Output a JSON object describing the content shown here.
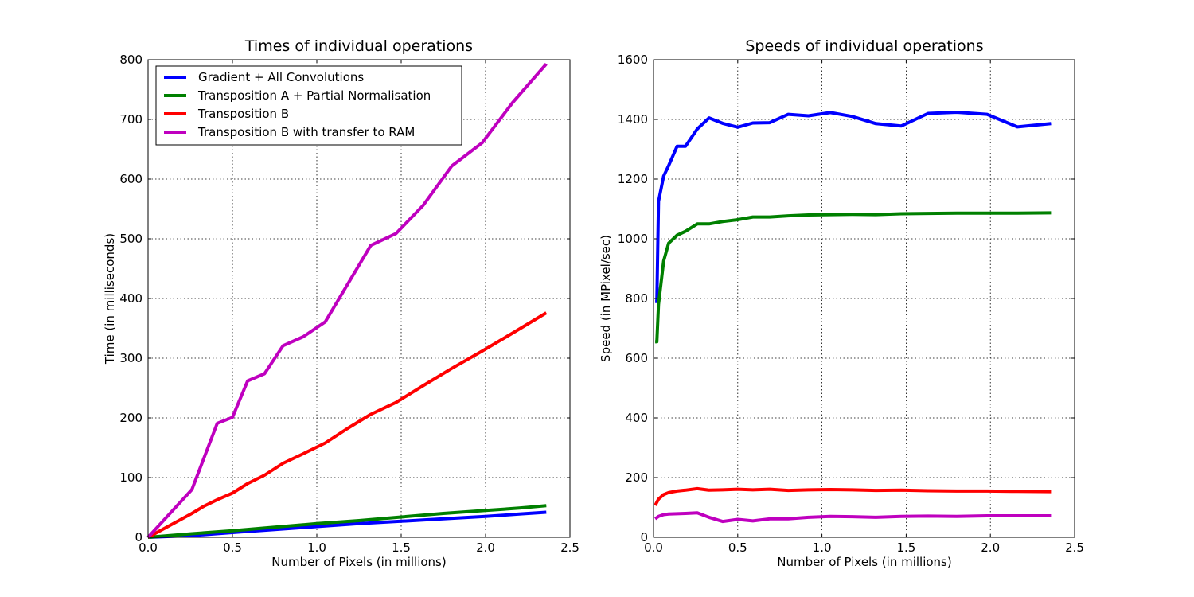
{
  "chart_data": [
    {
      "type": "line",
      "title": "Times of individual operations",
      "xlabel": "Number of Pixels (in millions)",
      "ylabel": "Time (in milliseconds)",
      "xlim": [
        0,
        2.5
      ],
      "ylim": [
        0,
        800
      ],
      "xticks": [
        "0.0",
        "0.5",
        "1.0",
        "1.5",
        "2.0",
        "2.5"
      ],
      "yticks": [
        "0",
        "100",
        "200",
        "300",
        "400",
        "500",
        "600",
        "700",
        "800"
      ],
      "grid": true,
      "legend": "upper-left",
      "series": [
        {
          "name": "Gradient + All Convolutions",
          "color": "#0000ff",
          "x": [
            0.0,
            0.26,
            0.5,
            0.75,
            1.0,
            1.25,
            1.5,
            1.75,
            2.0,
            2.2,
            2.36
          ],
          "y": [
            0,
            3,
            8,
            13,
            18,
            23,
            27,
            31,
            35,
            39,
            42
          ]
        },
        {
          "name": "Transposition A + Partial Normalisation",
          "color": "#008000",
          "x": [
            0.0,
            0.26,
            0.5,
            0.75,
            1.0,
            1.25,
            1.5,
            1.75,
            2.0,
            2.2,
            2.36
          ],
          "y": [
            0,
            6,
            11,
            17,
            23,
            28,
            34,
            40,
            45,
            49,
            53
          ]
        },
        {
          "name": "Transposition B",
          "color": "#ff0000",
          "x": [
            0.0,
            0.26,
            0.33,
            0.41,
            0.5,
            0.59,
            0.69,
            0.8,
            0.92,
            1.05,
            1.18,
            1.32,
            1.47,
            1.63,
            1.8,
            1.98,
            2.16,
            2.36
          ],
          "y": [
            0,
            40,
            52,
            63,
            74,
            90,
            104,
            124,
            140,
            158,
            182,
            206,
            226,
            254,
            283,
            312,
            342,
            376
          ]
        },
        {
          "name": "Transposition B with transfer to RAM",
          "color": "#bf00bf",
          "x": [
            0.0,
            0.26,
            0.41,
            0.5,
            0.59,
            0.69,
            0.8,
            0.92,
            1.05,
            1.32,
            1.47,
            1.63,
            1.8,
            1.98,
            2.16,
            2.36
          ],
          "y": [
            0,
            80,
            191,
            201,
            262,
            274,
            321,
            336,
            361,
            489,
            509,
            556,
            622,
            661,
            728,
            793
          ]
        }
      ]
    },
    {
      "type": "line",
      "title": "Speeds of individual operations",
      "xlabel": "Number of Pixels (in millions)",
      "ylabel": "Speed (in MPixel/sec)",
      "xlim": [
        0,
        2.5
      ],
      "ylim": [
        0,
        1600
      ],
      "xticks": [
        "0.0",
        "0.5",
        "1.0",
        "1.5",
        "2.0",
        "2.5"
      ],
      "yticks": [
        "0",
        "200",
        "400",
        "600",
        "800",
        "1000",
        "1200",
        "1400",
        "1600"
      ],
      "grid": true,
      "legend": "none",
      "series": [
        {
          "color": "#0000ff",
          "x": [
            0.01,
            0.02,
            0.03,
            0.06,
            0.09,
            0.14,
            0.19,
            0.26,
            0.33,
            0.41,
            0.5,
            0.59,
            0.69,
            0.8,
            0.92,
            1.05,
            1.18,
            1.32,
            1.47,
            1.63,
            1.8,
            1.98,
            2.16,
            2.36
          ],
          "y": [
            790,
            790,
            1125,
            1210,
            1245,
            1310,
            1310,
            1368,
            1405,
            1387,
            1374,
            1388,
            1389,
            1417,
            1412,
            1423,
            1410,
            1386,
            1378,
            1420,
            1424,
            1417,
            1375,
            1386
          ]
        },
        {
          "color": "#008000",
          "x": [
            0.01,
            0.02,
            0.03,
            0.06,
            0.09,
            0.14,
            0.19,
            0.26,
            0.33,
            0.41,
            0.5,
            0.59,
            0.69,
            0.8,
            0.92,
            1.05,
            1.18,
            1.32,
            1.47,
            1.63,
            1.8,
            1.98,
            2.16,
            2.36
          ],
          "y": [
            655,
            655,
            780,
            925,
            985,
            1012,
            1025,
            1050,
            1050,
            1058,
            1064,
            1073,
            1073,
            1077,
            1080,
            1081,
            1082,
            1081,
            1084,
            1085,
            1086,
            1086,
            1086,
            1087
          ]
        },
        {
          "color": "#ff0000",
          "x": [
            0.01,
            0.03,
            0.06,
            0.09,
            0.14,
            0.19,
            0.26,
            0.33,
            0.41,
            0.5,
            0.59,
            0.69,
            0.8,
            0.92,
            1.05,
            1.18,
            1.32,
            1.47,
            1.63,
            1.8,
            1.98,
            2.16,
            2.36
          ],
          "y": [
            107,
            128,
            143,
            150,
            155,
            158,
            163,
            158,
            159,
            161,
            159,
            161,
            157,
            159,
            160,
            159,
            157,
            158,
            156,
            155,
            155,
            154,
            153
          ]
        },
        {
          "color": "#bf00bf",
          "x": [
            0.01,
            0.03,
            0.06,
            0.09,
            0.14,
            0.19,
            0.26,
            0.33,
            0.41,
            0.5,
            0.59,
            0.69,
            0.8,
            0.92,
            1.05,
            1.18,
            1.32,
            1.47,
            1.63,
            1.8,
            1.98,
            2.16,
            2.36
          ],
          "y": [
            62,
            70,
            76,
            78,
            79,
            80,
            82,
            67,
            53,
            60,
            55,
            62,
            62,
            67,
            70,
            69,
            67,
            70,
            71,
            70,
            72,
            72,
            72
          ]
        }
      ]
    }
  ]
}
